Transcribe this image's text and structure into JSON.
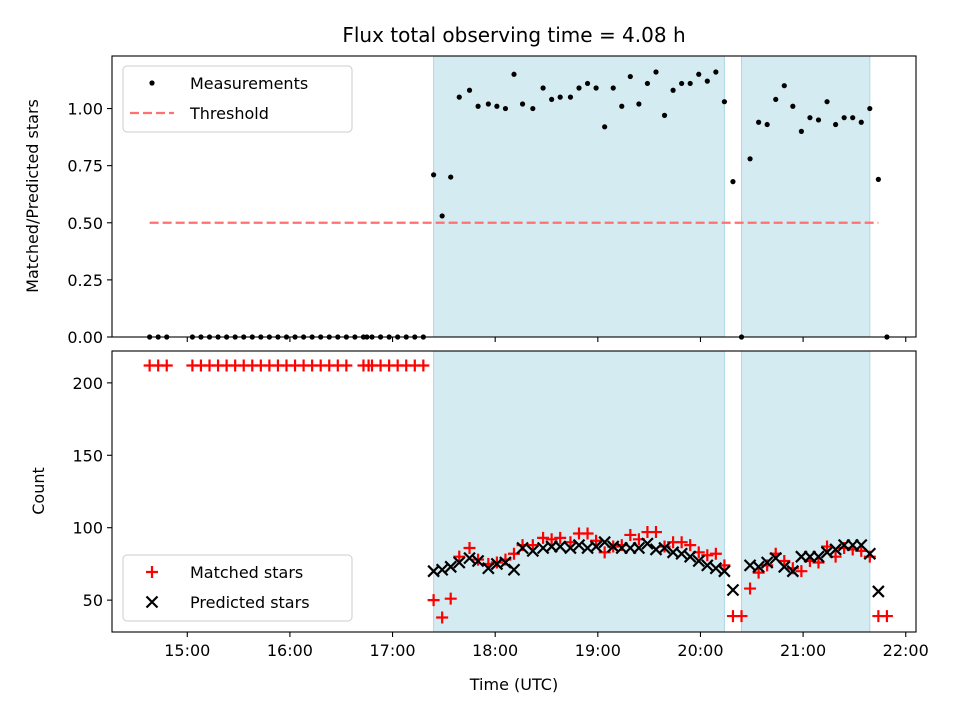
{
  "colors": {
    "band": "#add8e6",
    "threshold": "#ff7070",
    "measurement": "#000000",
    "matched": "#ff0000",
    "predicted": "#000000"
  },
  "chart_data": [
    {
      "type": "scatter",
      "title": "Flux total observing time = 4.08 h",
      "xlabel": "",
      "ylabel": "Matched/Predicted stars",
      "xlim": [
        "14:16",
        "22:06"
      ],
      "ylim": [
        0,
        1.23
      ],
      "yticks": [
        "0.00",
        "0.25",
        "0.50",
        "0.75",
        "1.00"
      ],
      "legend": {
        "placement": "top-left",
        "entries": [
          "Measurements",
          "Threshold"
        ]
      },
      "shaded_intervals": [
        [
          "17:24",
          "20:14"
        ],
        [
          "20:24",
          "21:39"
        ]
      ],
      "threshold": {
        "value": 0.5,
        "x_start": "14:38",
        "x_end": "21:44"
      },
      "series": [
        {
          "name": "Measurements",
          "points": [
            [
              "14:38",
              0
            ],
            [
              "14:43",
              0
            ],
            [
              "14:48",
              0
            ],
            [
              "15:03",
              0
            ],
            [
              "15:08",
              0
            ],
            [
              "15:13",
              0
            ],
            [
              "15:18",
              0
            ],
            [
              "15:23",
              0
            ],
            [
              "15:28",
              0
            ],
            [
              "15:33",
              0
            ],
            [
              "15:38",
              0
            ],
            [
              "15:43",
              0
            ],
            [
              "15:48",
              0
            ],
            [
              "15:53",
              0
            ],
            [
              "15:58",
              0
            ],
            [
              "16:03",
              0
            ],
            [
              "16:08",
              0
            ],
            [
              "16:13",
              0
            ],
            [
              "16:18",
              0
            ],
            [
              "16:23",
              0
            ],
            [
              "16:28",
              0
            ],
            [
              "16:33",
              0
            ],
            [
              "16:38",
              0
            ],
            [
              "16:43",
              0
            ],
            [
              "16:45",
              0
            ],
            [
              "16:48",
              0
            ],
            [
              "16:53",
              0
            ],
            [
              "16:58",
              0
            ],
            [
              "17:03",
              0
            ],
            [
              "17:08",
              0
            ],
            [
              "17:13",
              0
            ],
            [
              "17:18",
              0
            ],
            [
              "17:24",
              0.71
            ],
            [
              "17:29",
              0.53
            ],
            [
              "17:34",
              0.7
            ],
            [
              "17:39",
              1.05
            ],
            [
              "17:45",
              1.08
            ],
            [
              "17:50",
              1.01
            ],
            [
              "17:56",
              1.02
            ],
            [
              "18:01",
              1.01
            ],
            [
              "18:06",
              1.0
            ],
            [
              "18:11",
              1.15
            ],
            [
              "18:16",
              1.02
            ],
            [
              "18:22",
              1.0
            ],
            [
              "18:28",
              1.09
            ],
            [
              "18:33",
              1.04
            ],
            [
              "18:38",
              1.05
            ],
            [
              "18:44",
              1.05
            ],
            [
              "18:49",
              1.09
            ],
            [
              "18:54",
              1.11
            ],
            [
              "18:59",
              1.09
            ],
            [
              "19:04",
              0.92
            ],
            [
              "19:09",
              1.09
            ],
            [
              "19:14",
              1.01
            ],
            [
              "19:19",
              1.14
            ],
            [
              "19:24",
              1.02
            ],
            [
              "19:29",
              1.11
            ],
            [
              "19:34",
              1.16
            ],
            [
              "19:39",
              0.97
            ],
            [
              "19:44",
              1.08
            ],
            [
              "19:49",
              1.11
            ],
            [
              "19:54",
              1.11
            ],
            [
              "19:59",
              1.15
            ],
            [
              "20:04",
              1.12
            ],
            [
              "20:09",
              1.16
            ],
            [
              "20:14",
              1.03
            ],
            [
              "20:19",
              0.68
            ],
            [
              "20:24",
              0
            ],
            [
              "20:29",
              0.78
            ],
            [
              "20:34",
              0.94
            ],
            [
              "20:39",
              0.93
            ],
            [
              "20:44",
              1.04
            ],
            [
              "20:49",
              1.1
            ],
            [
              "20:54",
              1.01
            ],
            [
              "20:59",
              0.9
            ],
            [
              "21:04",
              0.96
            ],
            [
              "21:09",
              0.95
            ],
            [
              "21:14",
              1.03
            ],
            [
              "21:19",
              0.93
            ],
            [
              "21:24",
              0.96
            ],
            [
              "21:29",
              0.96
            ],
            [
              "21:34",
              0.94
            ],
            [
              "21:39",
              1.0
            ],
            [
              "21:44",
              0.69
            ],
            [
              "21:49",
              0
            ]
          ]
        }
      ]
    },
    {
      "type": "scatter",
      "title": "",
      "xlabel": "Time (UTC)",
      "ylabel": "Count",
      "xlim": [
        "14:16",
        "22:06"
      ],
      "ylim": [
        28,
        222
      ],
      "yticks": [
        "50",
        "100",
        "150",
        "200"
      ],
      "xticks": [
        "15:00",
        "16:00",
        "17:00",
        "18:00",
        "19:00",
        "20:00",
        "21:00",
        "22:00"
      ],
      "legend": {
        "placement": "bottom-left",
        "entries": [
          "Matched stars",
          "Predicted stars"
        ]
      },
      "shaded_intervals": [
        [
          "17:24",
          "20:14"
        ],
        [
          "20:24",
          "21:39"
        ]
      ],
      "series": [
        {
          "name": "Matched stars",
          "marker": "plus",
          "points": [
            [
              "14:38",
              212
            ],
            [
              "14:43",
              212
            ],
            [
              "14:48",
              212
            ],
            [
              "15:03",
              212
            ],
            [
              "15:08",
              212
            ],
            [
              "15:13",
              212
            ],
            [
              "15:18",
              212
            ],
            [
              "15:23",
              212
            ],
            [
              "15:28",
              212
            ],
            [
              "15:33",
              212
            ],
            [
              "15:38",
              212
            ],
            [
              "15:43",
              212
            ],
            [
              "15:48",
              212
            ],
            [
              "15:53",
              212
            ],
            [
              "15:58",
              212
            ],
            [
              "16:03",
              212
            ],
            [
              "16:08",
              212
            ],
            [
              "16:13",
              212
            ],
            [
              "16:18",
              212
            ],
            [
              "16:23",
              212
            ],
            [
              "16:28",
              212
            ],
            [
              "16:33",
              212
            ],
            [
              "16:43",
              212
            ],
            [
              "16:46",
              212
            ],
            [
              "16:48",
              212
            ],
            [
              "16:53",
              212
            ],
            [
              "16:58",
              212
            ],
            [
              "17:03",
              212
            ],
            [
              "17:08",
              212
            ],
            [
              "17:13",
              212
            ],
            [
              "17:18",
              212
            ],
            [
              "17:24",
              50
            ],
            [
              "17:29",
              38
            ],
            [
              "17:34",
              51
            ],
            [
              "17:39",
              80
            ],
            [
              "17:45",
              86
            ],
            [
              "17:50",
              78
            ],
            [
              "17:56",
              75
            ],
            [
              "18:01",
              76
            ],
            [
              "18:06",
              78
            ],
            [
              "18:11",
              82
            ],
            [
              "18:16",
              88
            ],
            [
              "18:22",
              88
            ],
            [
              "18:28",
              93
            ],
            [
              "18:33",
              92
            ],
            [
              "18:38",
              93
            ],
            [
              "18:44",
              90
            ],
            [
              "18:49",
              96
            ],
            [
              "18:54",
              96
            ],
            [
              "18:59",
              91
            ],
            [
              "19:04",
              83
            ],
            [
              "19:09",
              87
            ],
            [
              "19:14",
              88
            ],
            [
              "19:19",
              95
            ],
            [
              "19:24",
              92
            ],
            [
              "19:29",
              97
            ],
            [
              "19:34",
              97
            ],
            [
              "19:39",
              87
            ],
            [
              "19:44",
              90
            ],
            [
              "19:49",
              90
            ],
            [
              "19:54",
              88
            ],
            [
              "19:59",
              83
            ],
            [
              "20:04",
              81
            ],
            [
              "20:09",
              82
            ],
            [
              "20:14",
              74
            ],
            [
              "20:19",
              39
            ],
            [
              "20:24",
              39
            ],
            [
              "20:29",
              58
            ],
            [
              "20:34",
              69
            ],
            [
              "20:39",
              74
            ],
            [
              "20:44",
              82
            ],
            [
              "20:49",
              77
            ],
            [
              "20:54",
              72
            ],
            [
              "20:59",
              70
            ],
            [
              "21:04",
              77
            ],
            [
              "21:09",
              76
            ],
            [
              "21:14",
              87
            ],
            [
              "21:19",
              80
            ],
            [
              "21:24",
              86
            ],
            [
              "21:29",
              85
            ],
            [
              "21:34",
              84
            ],
            [
              "21:39",
              80
            ],
            [
              "21:44",
              39
            ],
            [
              "21:49",
              39
            ]
          ]
        },
        {
          "name": "Predicted stars",
          "marker": "x",
          "points": [
            [
              "17:24",
              70
            ],
            [
              "17:29",
              71
            ],
            [
              "17:34",
              73
            ],
            [
              "17:39",
              76
            ],
            [
              "17:45",
              79
            ],
            [
              "17:50",
              77
            ],
            [
              "17:56",
              72
            ],
            [
              "18:01",
              75
            ],
            [
              "18:06",
              76
            ],
            [
              "18:11",
              71
            ],
            [
              "18:16",
              86
            ],
            [
              "18:22",
              84
            ],
            [
              "18:28",
              86
            ],
            [
              "18:33",
              87
            ],
            [
              "18:38",
              87
            ],
            [
              "18:44",
              86
            ],
            [
              "18:49",
              88
            ],
            [
              "18:54",
              86
            ],
            [
              "18:59",
              87
            ],
            [
              "19:04",
              90
            ],
            [
              "19:09",
              87
            ],
            [
              "19:14",
              86
            ],
            [
              "19:19",
              86
            ],
            [
              "19:24",
              86
            ],
            [
              "19:29",
              89
            ],
            [
              "19:34",
              85
            ],
            [
              "19:39",
              86
            ],
            [
              "19:44",
              83
            ],
            [
              "19:49",
              82
            ],
            [
              "19:54",
              80
            ],
            [
              "19:59",
              77
            ],
            [
              "20:04",
              74
            ],
            [
              "20:09",
              72
            ],
            [
              "20:14",
              70
            ],
            [
              "20:19",
              57
            ],
            [
              "20:29",
              74
            ],
            [
              "20:34",
              73
            ],
            [
              "20:39",
              76
            ],
            [
              "20:44",
              79
            ],
            [
              "20:49",
              73
            ],
            [
              "20:54",
              70
            ],
            [
              "20:59",
              80
            ],
            [
              "21:04",
              80
            ],
            [
              "21:09",
              80
            ],
            [
              "21:14",
              83
            ],
            [
              "21:19",
              85
            ],
            [
              "21:24",
              88
            ],
            [
              "21:29",
              88
            ],
            [
              "21:34",
              88
            ],
            [
              "21:39",
              82
            ],
            [
              "21:44",
              56
            ]
          ]
        }
      ]
    }
  ]
}
